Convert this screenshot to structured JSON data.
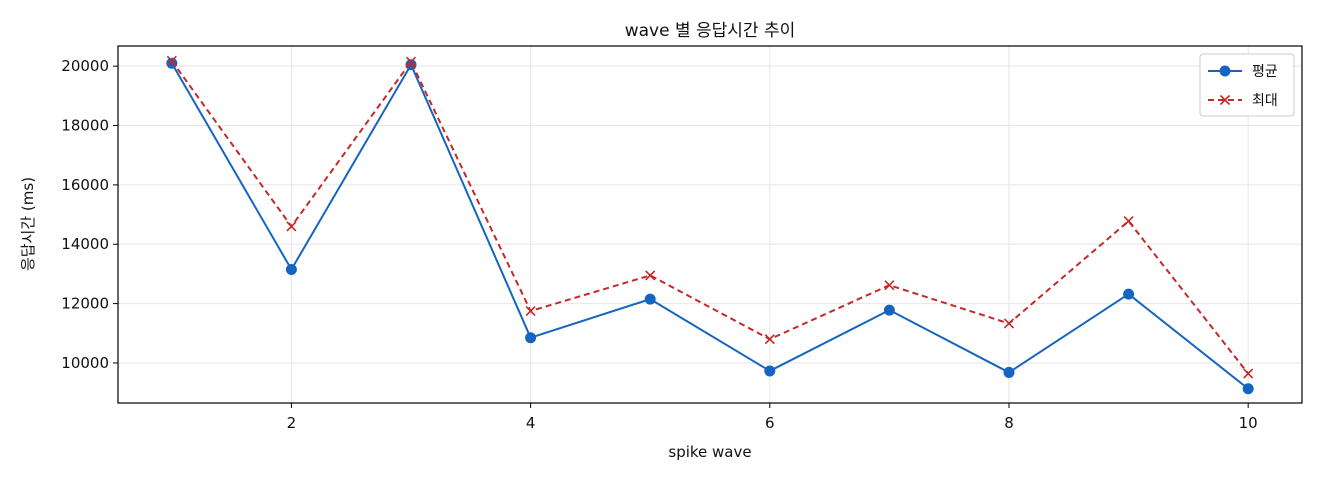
{
  "chart_data": {
    "type": "line",
    "title": "wave 별 응답시간 추이",
    "xlabel": "spike wave",
    "ylabel": "응답시간 (ms)",
    "x": [
      1,
      2,
      3,
      4,
      5,
      6,
      7,
      8,
      9,
      10
    ],
    "xlim": [
      0.55,
      10.45
    ],
    "ylim": [
      8650,
      20680
    ],
    "xticks": [
      2,
      4,
      6,
      8,
      10
    ],
    "yticks": [
      10000,
      12000,
      14000,
      16000,
      18000,
      20000
    ],
    "grid": true,
    "legend_position": "top-right",
    "series": [
      {
        "name": "평균",
        "color": "#1565c0",
        "line_style": "solid",
        "marker": "circle",
        "values": [
          20100,
          13150,
          20050,
          10850,
          12150,
          9730,
          11780,
          9680,
          12320,
          9130
        ]
      },
      {
        "name": "최대",
        "color": "#c62828",
        "line_style": "dashed",
        "marker": "x",
        "values": [
          20180,
          14600,
          20150,
          11750,
          12950,
          10800,
          12620,
          11330,
          14780,
          9640
        ]
      }
    ]
  }
}
